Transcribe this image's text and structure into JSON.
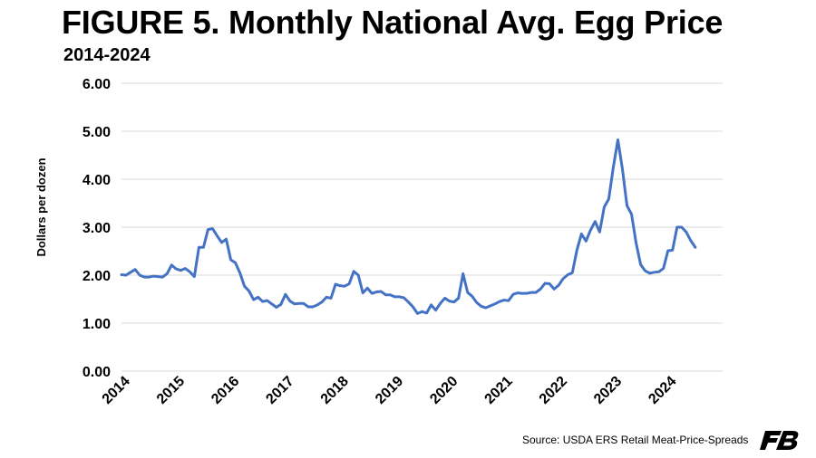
{
  "title": "FIGURE 5. Monthly National Avg. Egg Price",
  "subtitle": "2014-2024",
  "source": "Source: USDA ERS Retail Meat-Price-Spreads",
  "logo_icon": "fb-logo-icon",
  "colors": {
    "line": "#4472C4",
    "grid": "#d9d9d9",
    "logo": "#000000"
  },
  "chart_data": {
    "type": "line",
    "title": "FIGURE 5. Monthly National Avg. Egg Price",
    "subtitle": "2014-2024",
    "ylabel": "Dollars per dozen",
    "xlabel": "",
    "ylim": [
      0,
      6
    ],
    "yticks": [
      "0.00",
      "1.00",
      "2.00",
      "3.00",
      "4.00",
      "5.00",
      "6.00"
    ],
    "xticks": [
      "2014",
      "2015",
      "2016",
      "2017",
      "2018",
      "2019",
      "2020",
      "2021",
      "2022",
      "2023",
      "2024"
    ],
    "grid": true,
    "legend": "none",
    "start": "2014-01",
    "series": [
      {
        "values": [
          2.01,
          2.0,
          2.06,
          2.12,
          2.0,
          1.96,
          1.96,
          1.98,
          1.97,
          1.96,
          2.03,
          2.21,
          2.13,
          2.1,
          2.14,
          2.07,
          1.97,
          2.58,
          2.58,
          2.95,
          2.97,
          2.82,
          2.68,
          2.75,
          2.32,
          2.26,
          2.05,
          1.77,
          1.67,
          1.49,
          1.54,
          1.45,
          1.47,
          1.4,
          1.33,
          1.39,
          1.6,
          1.46,
          1.4,
          1.41,
          1.41,
          1.34,
          1.34,
          1.38,
          1.44,
          1.54,
          1.52,
          1.81,
          1.78,
          1.77,
          1.82,
          2.08,
          2.0,
          1.63,
          1.73,
          1.62,
          1.65,
          1.66,
          1.59,
          1.59,
          1.55,
          1.55,
          1.53,
          1.44,
          1.34,
          1.2,
          1.24,
          1.21,
          1.38,
          1.27,
          1.41,
          1.52,
          1.46,
          1.44,
          1.52,
          2.03,
          1.64,
          1.56,
          1.43,
          1.35,
          1.32,
          1.36,
          1.4,
          1.45,
          1.48,
          1.47,
          1.6,
          1.63,
          1.62,
          1.62,
          1.64,
          1.64,
          1.71,
          1.83,
          1.82,
          1.71,
          1.79,
          1.93,
          2.01,
          2.05,
          2.52,
          2.86,
          2.71,
          2.94,
          3.12,
          2.9,
          3.42,
          3.59,
          4.25,
          4.82,
          4.21,
          3.45,
          3.27,
          2.67,
          2.22,
          2.09,
          2.04,
          2.06,
          2.07,
          2.14,
          2.51,
          2.52,
          3.0,
          3.0,
          2.9,
          2.72,
          2.58
        ]
      }
    ]
  }
}
